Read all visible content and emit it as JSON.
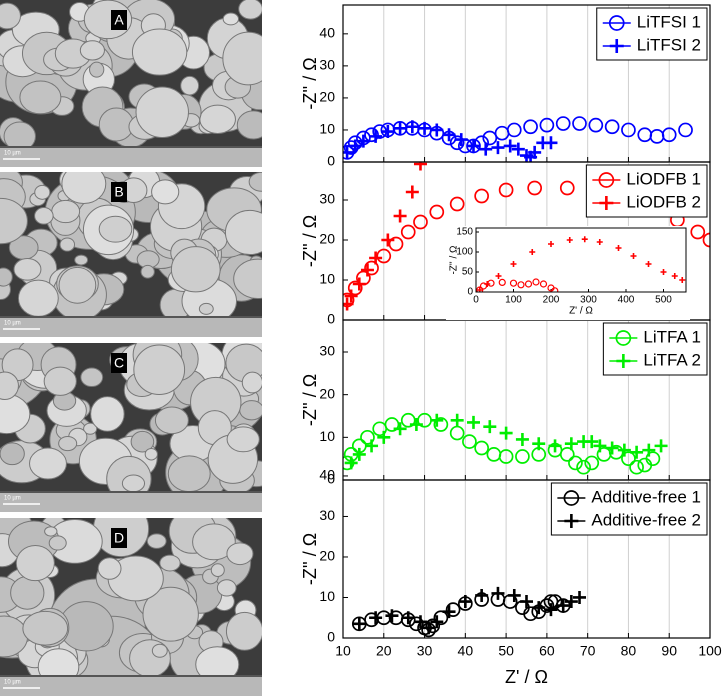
{
  "images": [
    {
      "label": "A",
      "scale_bar": "10 µm"
    },
    {
      "label": "B",
      "scale_bar": "10 µm"
    },
    {
      "label": "C",
      "scale_bar": "10 µm"
    },
    {
      "label": "D",
      "scale_bar": "10 µm"
    }
  ],
  "chart_data": [
    {
      "type": "scatter",
      "ylabel": "-Z'' / Ω",
      "xlim": [
        10,
        100
      ],
      "ylim": [
        0,
        49
      ],
      "xticks": [
        10,
        20,
        30,
        40,
        50,
        60,
        70,
        80,
        90,
        100
      ],
      "yticks": [
        0,
        10,
        20,
        30,
        40
      ],
      "grid": true,
      "legend": "top-right",
      "series": [
        {
          "name": "LiTFSI 1",
          "color": "#0000ff",
          "marker": "circle",
          "x": [
            11,
            12,
            13,
            15,
            17,
            19,
            21,
            24,
            27,
            30,
            33,
            36,
            38,
            40,
            42,
            44,
            46,
            49,
            52,
            56,
            60,
            64,
            68,
            72,
            76,
            80,
            84,
            87,
            90,
            94
          ],
          "values": [
            3,
            4.5,
            6,
            7.5,
            8.5,
            9.5,
            10,
            10.5,
            10.5,
            10,
            9,
            7.5,
            6,
            5,
            5,
            6,
            7.5,
            9,
            10,
            11,
            11.5,
            12,
            12,
            11.5,
            11,
            10,
            8.5,
            8,
            8.5,
            10
          ]
        },
        {
          "name": "LiTFSI 2",
          "color": "#0000ff",
          "marker": "plus",
          "x": [
            11,
            13,
            15,
            18,
            21,
            24,
            27,
            30,
            33,
            36,
            39,
            42,
            45,
            48,
            51,
            53,
            55,
            56,
            57,
            59,
            61
          ],
          "values": [
            3,
            5,
            6.5,
            8,
            9.5,
            10.5,
            11,
            10.5,
            10,
            8.5,
            7,
            5,
            4,
            4.5,
            5,
            4,
            2,
            1.5,
            3,
            6,
            6
          ]
        }
      ]
    },
    {
      "type": "scatter",
      "ylabel": "-Z'' / Ω",
      "xlim": [
        10,
        100
      ],
      "ylim": [
        0,
        39.5
      ],
      "xticks": [
        10,
        20,
        30,
        40,
        50,
        60,
        70,
        80,
        90,
        100
      ],
      "yticks": [
        0,
        10,
        20,
        30
      ],
      "grid": true,
      "legend": "top-right",
      "series": [
        {
          "name": "LiODFB 1",
          "color": "#ff0000",
          "marker": "circle",
          "x": [
            11,
            13,
            15,
            17,
            20,
            23,
            26,
            29,
            33,
            38,
            44,
            50,
            57,
            65,
            75,
            85,
            92,
            97,
            100
          ],
          "values": [
            5,
            8,
            10.5,
            13,
            16,
            19,
            22,
            24.5,
            27,
            29,
            31,
            32.5,
            33,
            33,
            32,
            29,
            25,
            22,
            20
          ]
        },
        {
          "name": "LiODFB 2",
          "color": "#ff0000",
          "marker": "plus",
          "x": [
            11,
            12,
            14,
            16,
            18,
            21,
            24,
            27,
            29
          ],
          "values": [
            4,
            6,
            9,
            12.5,
            15.5,
            20,
            26,
            32,
            39
          ]
        }
      ]
    },
    {
      "type": "scatter",
      "ylabel": "-Z'' / Ω",
      "xlim": [
        10,
        100
      ],
      "ylim": [
        0,
        37.5
      ],
      "xticks": [
        10,
        20,
        30,
        40,
        50,
        60,
        70,
        80,
        90,
        100
      ],
      "yticks": [
        0,
        10,
        20,
        30
      ],
      "grid": true,
      "legend": "top-right",
      "series": [
        {
          "name": "LiTFA 1",
          "color": "#00ee00",
          "marker": "circle",
          "x": [
            11,
            12,
            14,
            16,
            19,
            22,
            26,
            30,
            34,
            38,
            41,
            44,
            47,
            50,
            54,
            58,
            62,
            65,
            67,
            69,
            71,
            74,
            77,
            80,
            82,
            84,
            86
          ],
          "values": [
            4,
            6,
            8,
            10,
            12,
            13,
            14,
            14,
            13,
            11,
            9,
            7.5,
            6,
            5.5,
            5.5,
            6,
            7,
            6,
            4,
            3,
            4,
            6,
            6.5,
            5,
            3,
            3.5,
            5
          ]
        },
        {
          "name": "LiTFA 2",
          "color": "#00ee00",
          "marker": "plus",
          "x": [
            12,
            14,
            17,
            20,
            24,
            28,
            33,
            38,
            42,
            46,
            50,
            54,
            58,
            62,
            66,
            69,
            71,
            73,
            76,
            79,
            82,
            85,
            88
          ],
          "values": [
            4,
            6,
            8,
            10,
            12,
            13,
            14,
            14,
            13.5,
            12.5,
            11,
            9.5,
            8.5,
            8,
            8.5,
            9,
            9,
            8,
            7.5,
            7,
            6.5,
            7,
            8
          ]
        }
      ]
    },
    {
      "type": "scatter",
      "ylabel": "-Z'' / Ω",
      "xlabel": "Z' / Ω",
      "xlim": [
        10,
        100
      ],
      "ylim": [
        0,
        39
      ],
      "xticks": [
        10,
        20,
        30,
        40,
        50,
        60,
        70,
        80,
        90,
        100
      ],
      "yticks": [
        0,
        10,
        20,
        30,
        40
      ],
      "grid": true,
      "legend": "top-right",
      "series": [
        {
          "name": "Additive-free 1",
          "color": "#000000",
          "marker": "circle",
          "x": [
            14,
            17,
            20,
            23,
            26,
            28,
            30,
            31,
            32,
            34,
            37,
            40,
            44,
            48,
            51,
            54,
            56,
            58,
            60,
            61,
            62,
            64
          ],
          "values": [
            3.5,
            4.5,
            5,
            5,
            4.5,
            3.5,
            2.5,
            2,
            3,
            5,
            7,
            8.5,
            9.5,
            9.5,
            9,
            7.5,
            6,
            6.5,
            8,
            9,
            9,
            8
          ]
        },
        {
          "name": "Additive-free 2",
          "color": "#000000",
          "marker": "plus",
          "x": [
            14,
            18,
            22,
            26,
            29,
            31,
            33,
            36,
            40,
            44,
            48,
            52,
            55,
            58,
            61,
            64,
            66,
            68
          ],
          "values": [
            3.5,
            5,
            5.5,
            5,
            4,
            2.5,
            4,
            6.5,
            9,
            10.5,
            11,
            10.5,
            9,
            7.5,
            7,
            8,
            9,
            10
          ]
        }
      ]
    },
    {
      "type": "scatter",
      "ylabel": "-Z'' / Ω",
      "xlabel": "Z' / Ω",
      "xlim": [
        0,
        560
      ],
      "ylim": [
        0,
        160
      ],
      "xticks": [
        0,
        100,
        200,
        300,
        400,
        500
      ],
      "yticks": [
        0,
        50,
        100,
        150
      ],
      "grid": false,
      "series": [
        {
          "color": "#ff0000",
          "marker": "circle",
          "x": [
            10,
            20,
            40,
            70,
            100,
            120,
            140,
            160,
            180,
            200,
            210
          ],
          "values": [
            5,
            15,
            22,
            24,
            22,
            18,
            20,
            25,
            20,
            10,
            3
          ]
        },
        {
          "color": "#ff0000",
          "marker": "plus",
          "x": [
            10,
            30,
            60,
            100,
            150,
            200,
            250,
            290,
            330,
            380,
            420,
            460,
            500,
            530,
            550
          ],
          "values": [
            5,
            20,
            40,
            70,
            100,
            120,
            130,
            132,
            125,
            110,
            90,
            70,
            50,
            40,
            30
          ]
        }
      ]
    }
  ]
}
